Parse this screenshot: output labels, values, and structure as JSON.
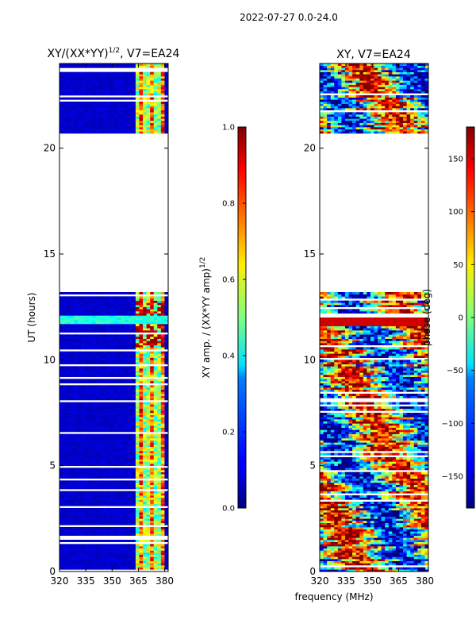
{
  "suptitle": "2022-07-27 0.0-24.0",
  "xlabel_shared": "frequency (MHz)",
  "chart_data": [
    {
      "type": "heatmap",
      "title_main": "XY/(XX*YY)",
      "title_exp": "1/2",
      "title_suffix": ", V7=EA24",
      "xlabel": "frequency (MHz)",
      "ylabel": "UT (hours)",
      "xlim": [
        320,
        382
      ],
      "ylim": [
        0,
        24
      ],
      "xticks": [
        "320",
        "335",
        "350",
        "365",
        "380"
      ],
      "xtick_values": [
        320,
        335,
        350,
        365,
        380
      ],
      "yticks": [
        "0",
        "5",
        "10",
        "15",
        "20"
      ],
      "ytick_values": [
        0,
        5,
        10,
        15,
        20
      ],
      "data_gap_hours": [
        13.2,
        20.7
      ],
      "colorbar": {
        "label_main": "XY amp. / (XX*YY amp)",
        "label_exp": "1/2",
        "range": [
          0.0,
          1.0
        ],
        "ticks": [
          "0.0",
          "0.2",
          "0.4",
          "0.6",
          "0.8",
          "1.0"
        ],
        "tick_values": [
          0.0,
          0.2,
          0.4,
          0.6,
          0.8,
          1.0
        ]
      }
    },
    {
      "type": "heatmap",
      "title": "XY, V7=EA24",
      "xlabel": "frequency (MHz)",
      "ylabel": "",
      "xlim": [
        320,
        382
      ],
      "ylim": [
        0,
        24
      ],
      "xticks": [
        "320",
        "335",
        "350",
        "365",
        "380"
      ],
      "xtick_values": [
        320,
        335,
        350,
        365,
        380
      ],
      "yticks": [
        "0",
        "5",
        "10",
        "15",
        "20"
      ],
      "ytick_values": [
        0,
        5,
        10,
        15,
        20
      ],
      "data_gap_hours": [
        13.2,
        20.7
      ],
      "colorbar": {
        "label": "phase (deg)",
        "range": [
          -180,
          180
        ],
        "ticks": [
          "−150",
          "−100",
          "−50",
          "0",
          "50",
          "100",
          "150"
        ],
        "tick_values": [
          -150,
          -100,
          -50,
          0,
          50,
          100,
          150
        ]
      }
    }
  ]
}
